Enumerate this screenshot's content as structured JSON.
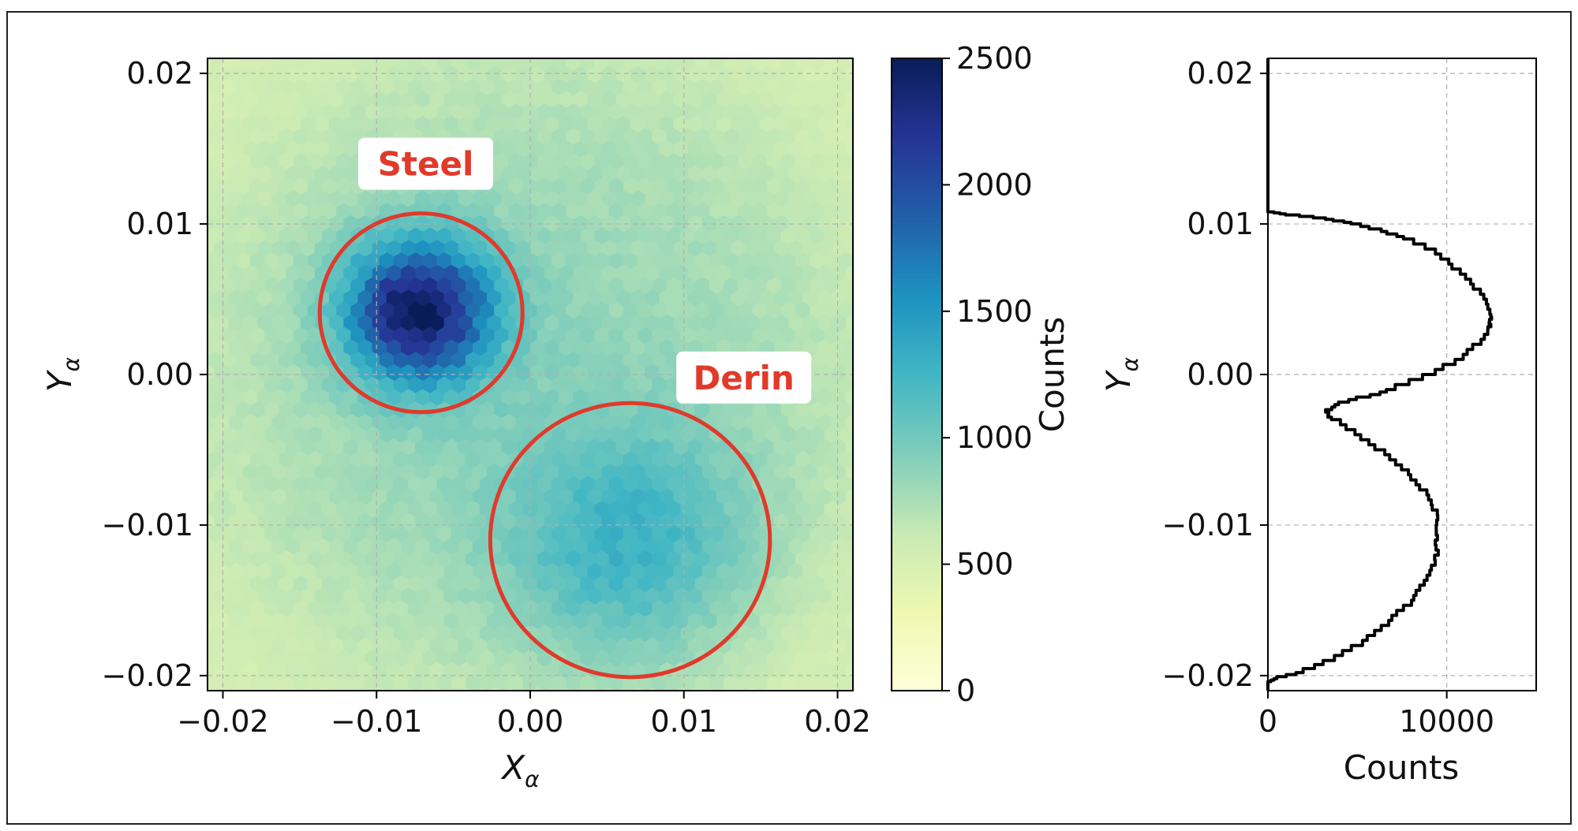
{
  "chart_data": [
    {
      "type": "heatmap",
      "subtype": "hexbin",
      "xlabel_main": "X",
      "xlabel_sub": "α",
      "ylabel_main": "Y",
      "ylabel_sub": "α",
      "xlim": [
        -0.021,
        0.021
      ],
      "ylim": [
        -0.021,
        0.021
      ],
      "xticks": [
        -0.02,
        -0.01,
        0.0,
        0.01,
        0.02
      ],
      "xtick_labels": [
        "−0.02",
        "−0.01",
        "0.00",
        "0.01",
        "0.02"
      ],
      "yticks": [
        -0.02,
        -0.01,
        0.0,
        0.01,
        0.02
      ],
      "ytick_labels": [
        "−0.02",
        "−0.01",
        "0.00",
        "0.01",
        "0.02"
      ],
      "grid": true,
      "background_level": 850,
      "blobs": [
        {
          "x": -0.0072,
          "y": 0.0042,
          "sigma": 0.0033,
          "peak": 1750
        },
        {
          "x": 0.0065,
          "y": -0.0115,
          "sigma": 0.0055,
          "peak": 520
        }
      ],
      "colorbar": {
        "label": "Counts",
        "range": [
          0,
          2500
        ],
        "ticks": [
          0,
          500,
          1000,
          1500,
          2000,
          2500
        ],
        "colormap": [
          "#ffffd9",
          "#edf8b1",
          "#c7e9b4",
          "#7fcdbb",
          "#41b6c4",
          "#1d91c0",
          "#225ea8",
          "#253494",
          "#081d58"
        ]
      },
      "annotations": [
        {
          "text": "Steel",
          "circle": {
            "x": -0.0071,
            "y": 0.0041,
            "r": 0.0066
          },
          "label_at": [
            -0.0068,
            0.014
          ]
        },
        {
          "text": "Derin",
          "circle": {
            "x": 0.0065,
            "y": -0.011,
            "r": 0.0091
          },
          "label_at": [
            0.0139,
            -0.0002
          ]
        }
      ],
      "annotation_color": "#e03a2b"
    },
    {
      "type": "line",
      "subtype": "step-histogram",
      "orientation": "horizontal",
      "xlabel": "Counts",
      "ylabel_main": "Y",
      "ylabel_sub": "α",
      "xlim": [
        0,
        15000
      ],
      "ylim": [
        -0.021,
        0.021
      ],
      "xticks": [
        0,
        10000
      ],
      "xtick_labels": [
        "0",
        "10000"
      ],
      "yticks": [
        -0.02,
        -0.01,
        0.0,
        0.01,
        0.02
      ],
      "ytick_labels": [
        "−0.02",
        "−0.01",
        "0.00",
        "0.01",
        "0.02"
      ],
      "grid": true,
      "line_color": "#000000",
      "points": [
        {
          "y": -0.021,
          "x": 0
        },
        {
          "y": -0.0205,
          "x": 0
        },
        {
          "y": -0.0202,
          "x": 500
        },
        {
          "y": -0.0198,
          "x": 2000
        },
        {
          "y": -0.019,
          "x": 3700
        },
        {
          "y": -0.018,
          "x": 5200
        },
        {
          "y": -0.017,
          "x": 6300
        },
        {
          "y": -0.016,
          "x": 7300
        },
        {
          "y": -0.015,
          "x": 8200
        },
        {
          "y": -0.014,
          "x": 8800
        },
        {
          "y": -0.013,
          "x": 9200
        },
        {
          "y": -0.012,
          "x": 9400
        },
        {
          "y": -0.011,
          "x": 9500
        },
        {
          "y": -0.01,
          "x": 9500
        },
        {
          "y": -0.009,
          "x": 9300
        },
        {
          "y": -0.008,
          "x": 8800
        },
        {
          "y": -0.007,
          "x": 8100
        },
        {
          "y": -0.006,
          "x": 7200
        },
        {
          "y": -0.005,
          "x": 6100
        },
        {
          "y": -0.004,
          "x": 4900
        },
        {
          "y": -0.003,
          "x": 3600
        },
        {
          "y": -0.0025,
          "x": 3200
        },
        {
          "y": -0.002,
          "x": 4000
        },
        {
          "y": -0.0015,
          "x": 5600
        },
        {
          "y": -0.001,
          "x": 7200
        },
        {
          "y": 0.0,
          "x": 9400
        },
        {
          "y": 0.001,
          "x": 10900
        },
        {
          "y": 0.002,
          "x": 11900
        },
        {
          "y": 0.003,
          "x": 12400
        },
        {
          "y": 0.0035,
          "x": 12500
        },
        {
          "y": 0.004,
          "x": 12400
        },
        {
          "y": 0.005,
          "x": 12000
        },
        {
          "y": 0.006,
          "x": 11300
        },
        {
          "y": 0.007,
          "x": 10400
        },
        {
          "y": 0.008,
          "x": 9300
        },
        {
          "y": 0.009,
          "x": 7600
        },
        {
          "y": 0.0095,
          "x": 6300
        },
        {
          "y": 0.01,
          "x": 4600
        },
        {
          "y": 0.0103,
          "x": 3300
        },
        {
          "y": 0.0106,
          "x": 1000
        },
        {
          "y": 0.0108,
          "x": 0
        },
        {
          "y": 0.021,
          "x": 0
        }
      ]
    }
  ]
}
